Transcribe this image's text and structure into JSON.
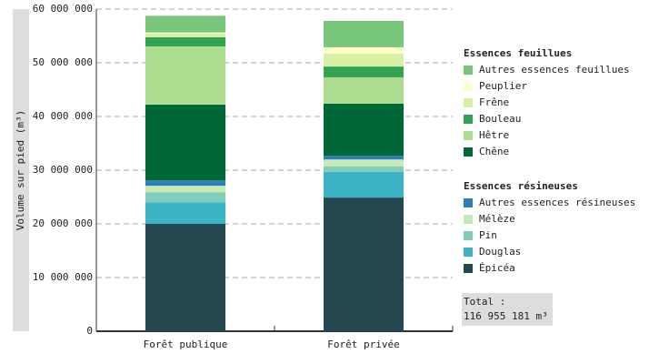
{
  "chart_data": {
    "type": "stacked-bar",
    "y_label": "Volume sur pied (m³)",
    "categories": [
      "Forêt publique",
      "Forêt privée"
    ],
    "ylim": [
      0,
      60000000
    ],
    "yticks": [
      0,
      {
        "value": 10000000,
        "label": "10 000 000"
      },
      {
        "value": 20000000,
        "label": "20 000 000"
      },
      {
        "value": 30000000,
        "label": "30 000 000"
      },
      {
        "value": 40000000,
        "label": "40 000 000"
      },
      {
        "value": 50000000,
        "label": "50 000 000"
      },
      {
        "value": 60000000,
        "label": "60 000 000"
      }
    ],
    "grid": true,
    "groups": [
      {
        "name": "Essences résineuses",
        "series": [
          {
            "name": "Épicéa",
            "color": "#254850",
            "values": [
              20000000,
              24900000
            ]
          },
          {
            "name": "Douglas",
            "color": "#3cb4c6",
            "values": [
              4000000,
              4800000
            ]
          },
          {
            "name": "Pin",
            "color": "#7fcdbb",
            "values": [
              1900000,
              1000000
            ]
          },
          {
            "name": "Mélèze",
            "color": "#c7e9b4",
            "values": [
              1200000,
              1300000
            ]
          },
          {
            "name": "Autres essences résineuses",
            "color": "#2c7fb8",
            "values": [
              1000000,
              700000
            ]
          }
        ]
      },
      {
        "name": "Essences feuillues",
        "series": [
          {
            "name": "Chêne",
            "color": "#006837",
            "values": [
              14100000,
              9700000
            ]
          },
          {
            "name": "Hêtre",
            "color": "#addd8e",
            "values": [
              10850000,
              4900000
            ]
          },
          {
            "name": "Bouleau",
            "color": "#31a354",
            "values": [
              1700000,
              2000000
            ]
          },
          {
            "name": "Frêne",
            "color": "#d9f0a3",
            "values": [
              700000,
              2400000
            ]
          },
          {
            "name": "Peuplier",
            "color": "#ffffcc",
            "values": [
              200000,
              1200000
            ]
          },
          {
            "name": "Autres essences feuillues",
            "color": "#78c679",
            "values": [
              3100000,
              4900000
            ]
          }
        ]
      }
    ],
    "total_label": "Total :",
    "total_value": "116 955 181 m³"
  }
}
